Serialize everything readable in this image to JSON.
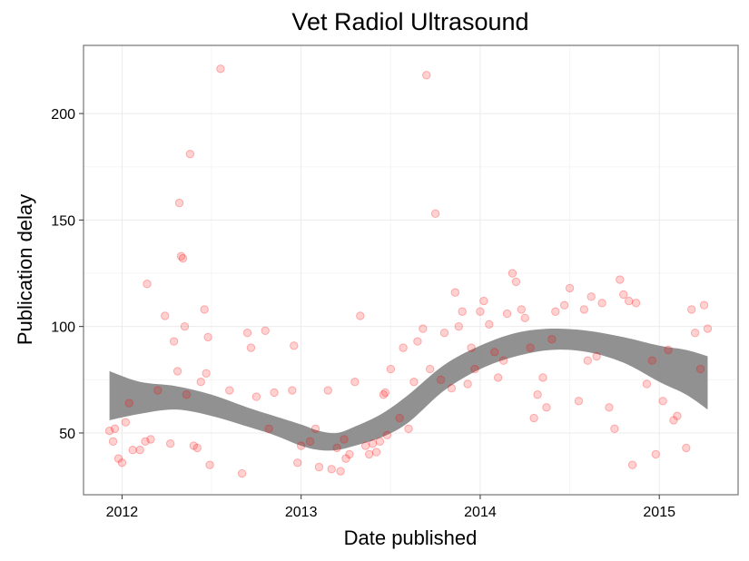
{
  "chart_data": {
    "type": "scatter",
    "title": "Vet Radiol Ultrasound",
    "xlabel": "Date published",
    "ylabel": "Publication delay",
    "xlim": [
      2011.785,
      2015.44
    ],
    "ylim": [
      21,
      232
    ],
    "x_ticks": [
      2012,
      2013,
      2014,
      2015
    ],
    "x_tick_labels": [
      "2012",
      "2013",
      "2014",
      "2015"
    ],
    "y_ticks": [
      50,
      100,
      150,
      200
    ],
    "y_tick_labels": [
      "50",
      "100",
      "150",
      "200"
    ],
    "grid": true,
    "legend": "none",
    "colors": {
      "points": "#ff0000",
      "band": "#888888",
      "frame": "#7f7f7f"
    },
    "series": [
      {
        "type": "points",
        "x": [
          2011.93,
          2011.95,
          2011.96,
          2011.98,
          2012.0,
          2012.02,
          2012.04,
          2012.06,
          2012.1,
          2012.13,
          2012.14,
          2012.16,
          2012.2,
          2012.24,
          2012.27,
          2012.29,
          2012.31,
          2012.32,
          2012.33,
          2012.34,
          2012.35,
          2012.36,
          2012.38,
          2012.4,
          2012.42,
          2012.44,
          2012.46,
          2012.47,
          2012.48,
          2012.49,
          2012.55,
          2012.6,
          2012.67,
          2012.7,
          2012.72,
          2012.75,
          2012.8,
          2012.82,
          2012.85,
          2012.95,
          2012.96,
          2012.98,
          2013.0,
          2013.05,
          2013.08,
          2013.1,
          2013.15,
          2013.17,
          2013.2,
          2013.22,
          2013.24,
          2013.25,
          2013.27,
          2013.3,
          2013.33,
          2013.36,
          2013.38,
          2013.4,
          2013.42,
          2013.44,
          2013.46,
          2013.47,
          2013.48,
          2013.5,
          2013.55,
          2013.57,
          2013.6,
          2013.63,
          2013.65,
          2013.68,
          2013.7,
          2013.72,
          2013.75,
          2013.78,
          2013.8,
          2013.84,
          2013.86,
          2013.88,
          2013.9,
          2013.93,
          2013.95,
          2013.97,
          2014.0,
          2014.02,
          2014.05,
          2014.08,
          2014.1,
          2014.13,
          2014.15,
          2014.18,
          2014.2,
          2014.23,
          2014.25,
          2014.28,
          2014.3,
          2014.32,
          2014.35,
          2014.37,
          2014.4,
          2014.42,
          2014.47,
          2014.5,
          2014.55,
          2014.58,
          2014.6,
          2014.62,
          2014.65,
          2014.68,
          2014.72,
          2014.75,
          2014.78,
          2014.8,
          2014.83,
          2014.85,
          2014.87,
          2014.93,
          2014.96,
          2014.98,
          2015.02,
          2015.05,
          2015.08,
          2015.1,
          2015.15,
          2015.18,
          2015.2,
          2015.23,
          2015.25,
          2015.27
        ],
        "y": [
          51,
          46,
          52,
          38,
          36,
          55,
          64,
          42,
          42,
          46,
          120,
          47,
          70,
          105,
          45,
          93,
          79,
          158,
          133,
          132,
          100,
          68,
          181,
          44,
          43,
          74,
          108,
          78,
          95,
          35,
          221,
          70,
          31,
          97,
          90,
          67,
          98,
          52,
          69,
          70,
          91,
          36,
          44,
          46,
          52,
          34,
          70,
          33,
          43,
          32,
          47,
          38,
          40,
          74,
          105,
          44,
          40,
          45,
          41,
          46,
          68,
          69,
          49,
          80,
          57,
          90,
          52,
          74,
          93,
          99,
          218,
          80,
          153,
          75,
          97,
          71,
          116,
          100,
          107,
          73,
          90,
          80,
          107,
          112,
          101,
          88,
          76,
          84,
          106,
          125,
          121,
          108,
          104,
          90,
          57,
          68,
          76,
          62,
          94,
          107,
          110,
          118,
          65,
          108,
          84,
          114,
          86,
          111,
          62,
          52,
          122,
          115,
          112,
          35,
          111,
          73,
          84,
          40,
          65,
          89,
          56,
          58,
          43,
          108,
          97,
          80,
          110,
          99
        ]
      },
      {
        "type": "smooth-band",
        "x": [
          2011.93,
          2012.1,
          2012.3,
          2012.5,
          2012.7,
          2012.85,
          2013.0,
          2013.1,
          2013.2,
          2013.3,
          2013.45,
          2013.6,
          2013.8,
          2014.0,
          2014.2,
          2014.4,
          2014.6,
          2014.8,
          2015.0,
          2015.15,
          2015.27
        ],
        "lower": [
          56,
          59,
          61,
          58,
          53,
          49,
          44,
          42,
          42,
          44,
          48,
          55,
          70,
          80,
          86,
          89,
          88,
          83,
          74,
          68,
          61
        ],
        "upper": [
          79,
          74,
          72,
          68,
          62,
          58,
          54,
          51,
          50,
          53,
          59,
          68,
          82,
          91,
          97,
          99,
          98,
          95,
          91,
          89,
          86
        ]
      }
    ]
  }
}
